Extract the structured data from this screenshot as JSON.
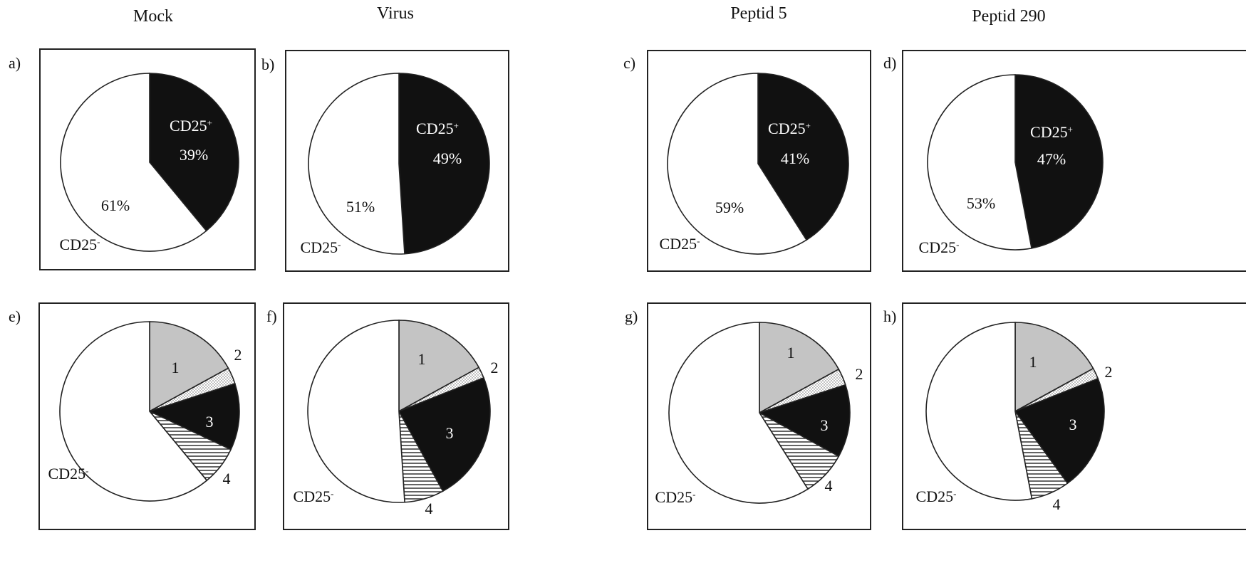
{
  "column_titles": [
    "Mock",
    "Virus",
    "Peptid 5",
    "Peptid 290"
  ],
  "chart_data": [
    {
      "type": "pie",
      "panel": "a)",
      "slices": [
        {
          "label": "CD25+",
          "display": [
            "CD25",
            "+"
          ],
          "pct_text": "39%",
          "value": 39,
          "fill": "black"
        },
        {
          "label": "CD25-",
          "display": [
            "CD25",
            "-"
          ],
          "pct_text": "61%",
          "value": 61,
          "fill": "white"
        }
      ]
    },
    {
      "type": "pie",
      "panel": "b)",
      "slices": [
        {
          "label": "CD25+",
          "display": [
            "CD25",
            "+"
          ],
          "pct_text": "49%",
          "value": 49,
          "fill": "black"
        },
        {
          "label": "CD25-",
          "display": [
            "CD25",
            "-"
          ],
          "pct_text": "51%",
          "value": 51,
          "fill": "white"
        }
      ]
    },
    {
      "type": "pie",
      "panel": "c)",
      "slices": [
        {
          "label": "CD25+",
          "display": [
            "CD25",
            "+"
          ],
          "pct_text": "41%",
          "value": 41,
          "fill": "black"
        },
        {
          "label": "CD25-",
          "display": [
            "CD25",
            "-"
          ],
          "pct_text": "59%",
          "value": 59,
          "fill": "white"
        }
      ]
    },
    {
      "type": "pie",
      "panel": "d)",
      "slices": [
        {
          "label": "CD25+",
          "display": [
            "CD25",
            "+"
          ],
          "pct_text": "47%",
          "value": 47,
          "fill": "black"
        },
        {
          "label": "CD25-",
          "display": [
            "CD25",
            "-"
          ],
          "pct_text": "53%",
          "value": 53,
          "fill": "white"
        }
      ]
    },
    {
      "type": "pie",
      "panel": "e)",
      "slices": [
        {
          "label": "1",
          "value": 17,
          "fill": "gray"
        },
        {
          "label": "2",
          "value": 3,
          "fill": "dots"
        },
        {
          "label": "3",
          "value": 12,
          "fill": "black"
        },
        {
          "label": "4",
          "value": 7,
          "fill": "hstripe"
        },
        {
          "label": "CD25-",
          "display": [
            "CD25",
            "-"
          ],
          "value": 61,
          "fill": "white"
        }
      ]
    },
    {
      "type": "pie",
      "panel": "f)",
      "slices": [
        {
          "label": "1",
          "value": 17,
          "fill": "gray"
        },
        {
          "label": "2",
          "value": 2,
          "fill": "dots"
        },
        {
          "label": "3",
          "value": 23,
          "fill": "black"
        },
        {
          "label": "4",
          "value": 7,
          "fill": "hstripe"
        },
        {
          "label": "CD25-",
          "display": [
            "CD25",
            "-"
          ],
          "value": 51,
          "fill": "white"
        }
      ]
    },
    {
      "type": "pie",
      "panel": "g)",
      "slices": [
        {
          "label": "1",
          "value": 17,
          "fill": "gray"
        },
        {
          "label": "2",
          "value": 3,
          "fill": "dots"
        },
        {
          "label": "3",
          "value": 13,
          "fill": "black"
        },
        {
          "label": "4",
          "value": 8,
          "fill": "hstripe"
        },
        {
          "label": "CD25-",
          "display": [
            "CD25",
            "-"
          ],
          "value": 59,
          "fill": "white"
        }
      ]
    },
    {
      "type": "pie",
      "panel": "h)",
      "slices": [
        {
          "label": "1",
          "value": 17,
          "fill": "gray"
        },
        {
          "label": "2",
          "value": 2,
          "fill": "dots"
        },
        {
          "label": "3",
          "value": 21,
          "fill": "black"
        },
        {
          "label": "4",
          "value": 7,
          "fill": "hstripe"
        },
        {
          "label": "CD25-",
          "display": [
            "CD25",
            "-"
          ],
          "value": 53,
          "fill": "white"
        }
      ]
    }
  ]
}
